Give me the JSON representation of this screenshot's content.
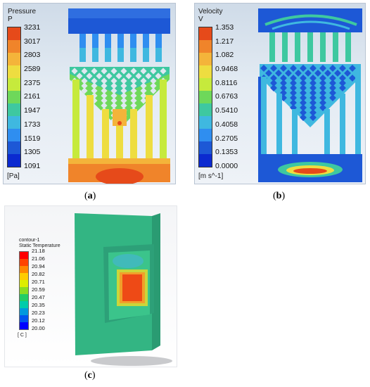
{
  "panel_a": {
    "legend_title_line1": "Pressure",
    "legend_title_line2": "P",
    "ticks": [
      "3231",
      "3017",
      "2803",
      "2589",
      "2375",
      "2161",
      "1947",
      "1733",
      "1519",
      "1305",
      "1091"
    ],
    "unit": "[Pa]",
    "caption_open": "(",
    "caption_letter": "a",
    "caption_close": ")"
  },
  "panel_b": {
    "legend_title_line1": "Velocity",
    "legend_title_line2": "V",
    "ticks": [
      "1.353",
      "1.217",
      "1.082",
      "0.9468",
      "0.8116",
      "0.6763",
      "0.5410",
      "0.4058",
      "0.2705",
      "0.1353",
      "0.0000"
    ],
    "unit": "[m s^-1]",
    "caption_open": "(",
    "caption_letter": "b",
    "caption_close": ")"
  },
  "panel_c": {
    "legend_title_line1": "contour-1",
    "legend_title_line2": "Static Temperature",
    "ticks": [
      "21.18",
      "21.06",
      "20.94",
      "20.82",
      "20.71",
      "20.59",
      "20.47",
      "20.35",
      "20.23",
      "20.12",
      "20.00"
    ],
    "unit": "[ C ]",
    "caption_open": "(",
    "caption_letter": "c",
    "caption_close": ")"
  },
  "colors": {
    "colormap_ansys": [
      "#e64a1a",
      "#f0842a",
      "#f4b43a",
      "#eedd40",
      "#c6ea3c",
      "#6ed85a",
      "#3ec8a0",
      "#3fb8e0",
      "#2f8ef0",
      "#1d58d6",
      "#0b2ad0"
    ],
    "colormap_fluent": [
      "#ff0000",
      "#ff4400",
      "#ff8800",
      "#ffcc00",
      "#ddee00",
      "#88dd22",
      "#22cc66",
      "#00ccaa",
      "#0099dd",
      "#0055ee",
      "#0000ff"
    ]
  }
}
